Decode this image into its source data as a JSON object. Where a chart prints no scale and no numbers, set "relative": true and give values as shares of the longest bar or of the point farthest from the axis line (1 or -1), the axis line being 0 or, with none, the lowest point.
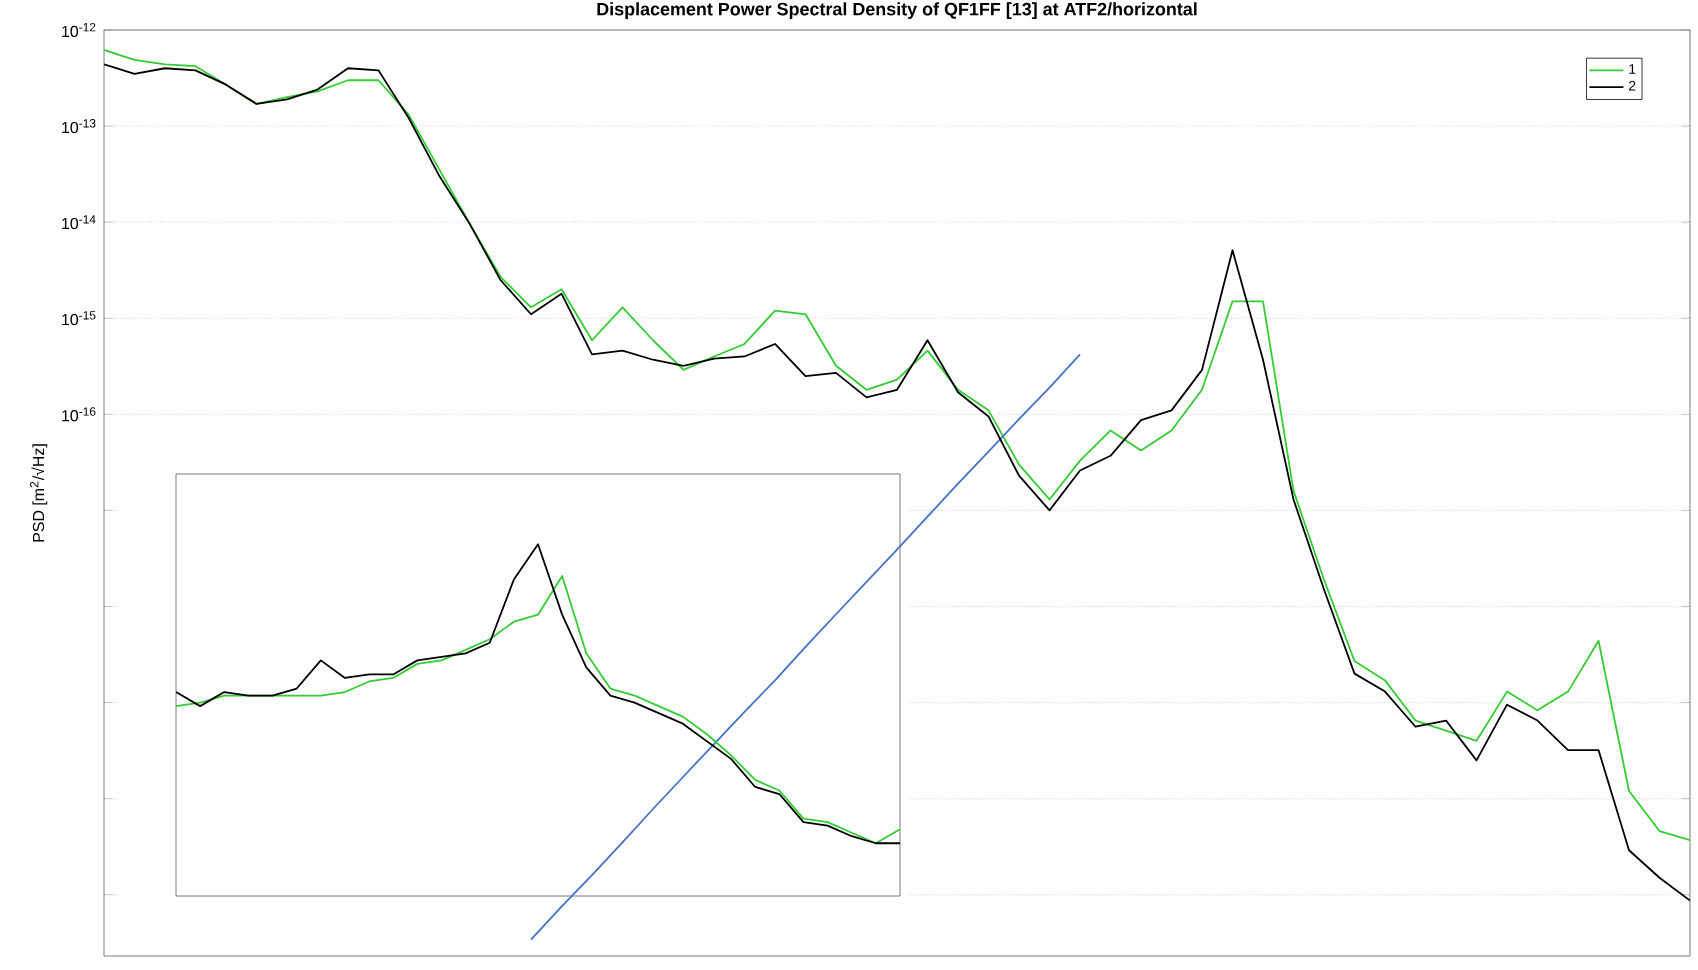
{
  "chart_data": [
    {
      "type": "line",
      "title": "Displacement Power Spectral Density of QF1FF [13] at ATF2/horizontal",
      "ylabel": "PSD [m$^{2}$/√Hz]",
      "categories": [
        null,
        null,
        null,
        null,
        null,
        null,
        null,
        null,
        null,
        null,
        null,
        null,
        null,
        null,
        null,
        null,
        null,
        null,
        null,
        null,
        null,
        null,
        null,
        null,
        null,
        null,
        null,
        null,
        null,
        null,
        null,
        null,
        null,
        null,
        null,
        null,
        null,
        null,
        null,
        null,
        null,
        null,
        null,
        null,
        null,
        null,
        null,
        null,
        null,
        null,
        null,
        null,
        null
      ],
      "series": [
        {
          "name": "1",
          "color": "#33cc33",
          "values": [
            6.2e-13,
            4.9e-13,
            4.4e-13,
            4.2e-13,
            2.7e-13,
            1.7e-13,
            2e-13,
            2.3e-13,
            3e-13,
            3e-13,
            1.3e-13,
            3.5e-14,
            9.5e-15,
            2.7e-15,
            1.3e-15,
            2e-15,
            5.9e-16,
            1.3e-15,
            5.9e-16,
            2.9e-16,
            4e-16,
            5.4e-16,
            1.2e-15,
            1.1e-15,
            3.2e-16,
            1.8e-16,
            2.3e-16,
            4.6e-16,
            1.8e-16,
            1.1e-16,
            3e-17,
            1.3e-17,
            3.3e-17,
            6.8e-17,
            4.2e-17,
            6.8e-17,
            1.8e-16,
            1.5e-15,
            1.5e-15,
            1.6e-17,
            1.9e-18,
            2.7e-19,
            1.7e-19,
            6.5e-20,
            5.1e-20,
            4e-20,
            1.3e-19,
            8.3e-20,
            1.3e-19,
            4.4e-19,
            1.2e-20,
            4.6e-21,
            3.7e-21
          ]
        },
        {
          "color": "#4472c4",
          "values": [
            null,
            null,
            null,
            null,
            null,
            null,
            null,
            null,
            null,
            null,
            null,
            null,
            null,
            null,
            3.4e-22,
            7.5e-22,
            1.6e-21,
            3.5e-21,
            7.8e-21,
            1.7e-20,
            3.7e-20,
            8e-20,
            1.7e-19,
            3.8e-19,
            8.3e-19,
            1.8e-18,
            3.9e-18,
            8.6e-18,
            1.9e-17,
            4.1e-17,
            8.9e-17,
            1.9e-16,
            4.2e-16,
            null,
            null,
            null,
            null,
            null,
            null,
            null,
            null,
            null,
            null,
            null,
            null,
            null,
            null,
            null,
            null,
            null,
            null,
            null,
            null
          ]
        },
        {
          "name": "2",
          "color": "#000000",
          "values": [
            4.4e-13,
            3.5e-13,
            4e-13,
            3.8e-13,
            2.7e-13,
            1.7e-13,
            1.9e-13,
            2.4e-13,
            4e-13,
            3.8e-13,
            1.2e-13,
            3e-14,
            9.5e-15,
            2.5e-15,
            1.1e-15,
            1.8e-15,
            4.2e-16,
            4.6e-16,
            3.7e-16,
            3.2e-16,
            3.8e-16,
            4e-16,
            5.4e-16,
            2.5e-16,
            2.7e-16,
            1.5e-16,
            1.8e-16,
            5.9e-16,
            1.7e-16,
            9.5e-17,
            2.3e-17,
            1e-17,
            2.6e-17,
            3.7e-17,
            8.7e-17,
            1.1e-16,
            2.9e-16,
            5.1e-15,
            3.7e-16,
            1.3e-17,
            1.5e-18,
            2e-19,
            1.3e-19,
            5.6e-20,
            6.5e-20,
            2.5e-20,
            9.5e-20,
            6.5e-20,
            3.2e-20,
            3.2e-20,
            2.9e-21,
            1.5e-21,
            8.7e-22
          ]
        }
      ],
      "ylim": [
        2.3e-22,
        1e-12
      ],
      "yticks": [
        {
          "value": 1e-12,
          "label": "10$^{-12}$"
        },
        {
          "value": 1e-13,
          "label": "10$^{-13}$"
        },
        {
          "value": 1e-14,
          "label": "10$^{-14}$"
        },
        {
          "value": 1e-15,
          "label": "10$^{-15}$"
        },
        {
          "value": 1e-16,
          "label": "10$^{-16}$"
        },
        {
          "value": 1e-17,
          "label": null
        },
        {
          "value": 1e-18,
          "label": null
        },
        {
          "value": 1e-19,
          "label": null
        },
        {
          "value": 1e-20,
          "label": null
        },
        {
          "value": 1e-21,
          "label": null
        }
      ],
      "log": "y",
      "grid": "y",
      "legend": "top right",
      "tick_labels": "y"
    },
    {
      "type": "line",
      "relative": true,
      "tick_labels": false,
      "categories": [
        null,
        null,
        null,
        null,
        null,
        null,
        null,
        null,
        null,
        null,
        null,
        null,
        null,
        null,
        null,
        null,
        null,
        null,
        null,
        null,
        null,
        null,
        null,
        null,
        null,
        null,
        null,
        null,
        null,
        null,
        null
      ],
      "series": [
        {
          "color": "#33cc33",
          "values": [
            0.54,
            0.55,
            0.57,
            0.57,
            0.57,
            0.57,
            0.57,
            0.58,
            0.61,
            0.62,
            0.66,
            0.67,
            0.7,
            0.73,
            0.78,
            0.8,
            0.91,
            0.69,
            0.59,
            0.57,
            0.54,
            0.51,
            0.46,
            0.4,
            0.33,
            0.3,
            0.22,
            0.21,
            0.18,
            0.15,
            0.19
          ]
        },
        {
          "color": "#000000",
          "values": [
            0.58,
            0.54,
            0.58,
            0.57,
            0.57,
            0.59,
            0.67,
            0.62,
            0.63,
            0.63,
            0.67,
            0.68,
            0.69,
            0.72,
            0.9,
            1,
            0.8,
            0.65,
            0.57,
            0.55,
            0.52,
            0.49,
            0.44,
            0.39,
            0.31,
            0.29,
            0.21,
            0.2,
            0.17,
            0.15,
            0.15
          ]
        }
      ]
    }
  ]
}
